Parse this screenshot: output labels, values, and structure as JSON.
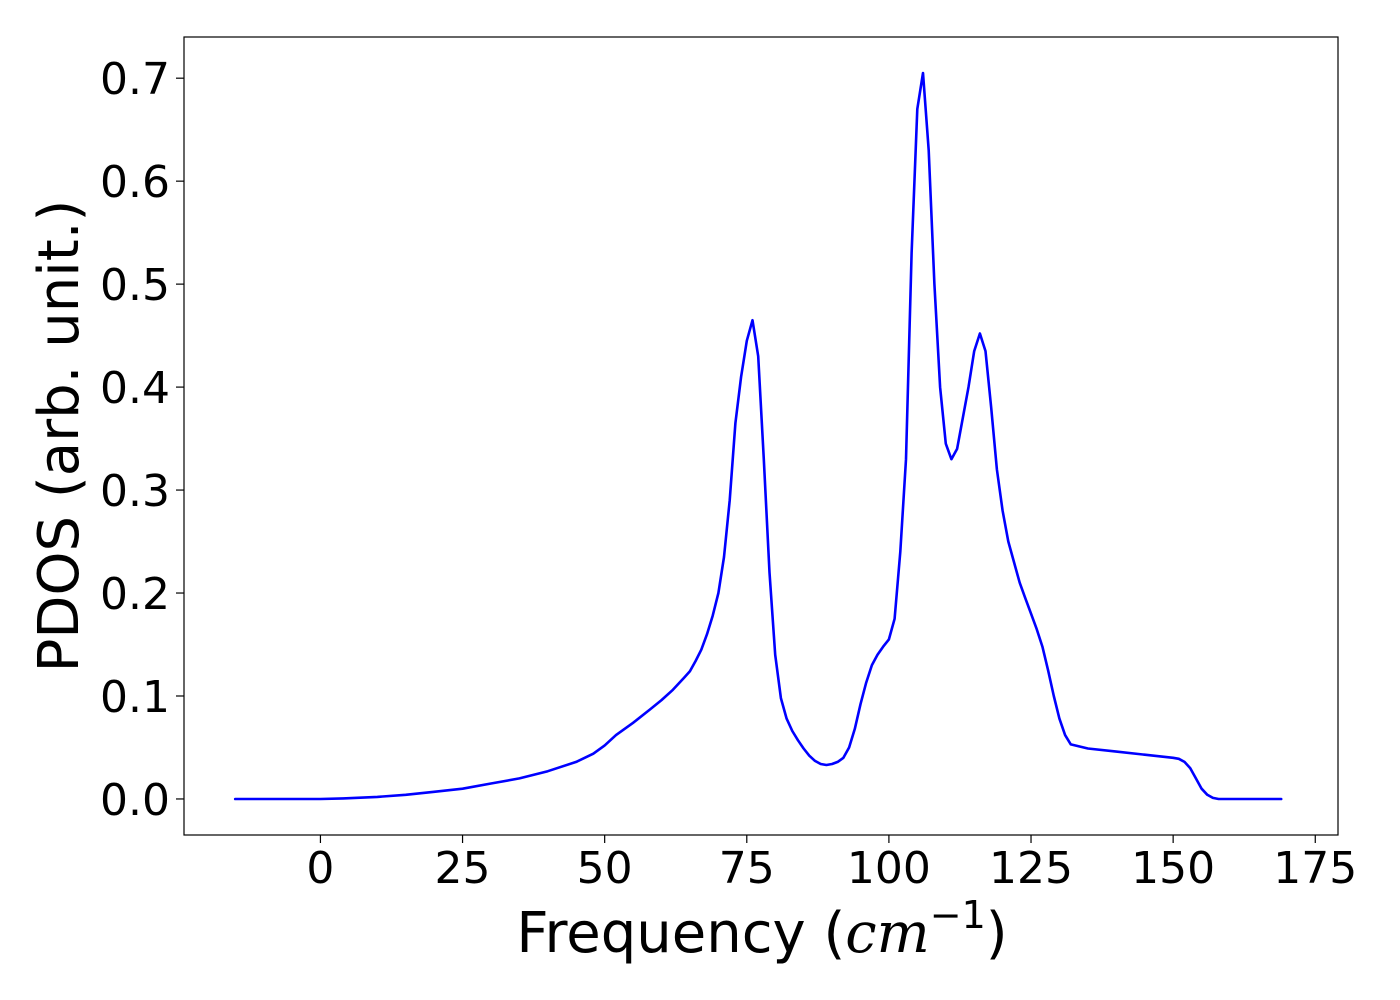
{
  "chart_data": {
    "type": "line",
    "title": "",
    "xlabel_text": "Frequency (",
    "xlabel_unit": "cm",
    "xlabel_exponent": "−1",
    "xlabel_close": ")",
    "ylabel": "PDOS (arb. unit.)",
    "xlim": [
      -24,
      179
    ],
    "ylim": [
      -0.035,
      0.74
    ],
    "xticks": [
      0,
      25,
      50,
      75,
      100,
      125,
      150,
      175
    ],
    "xtick_labels": [
      "0",
      "25",
      "50",
      "75",
      "100",
      "125",
      "150",
      "175"
    ],
    "yticks": [
      0.0,
      0.1,
      0.2,
      0.3,
      0.4,
      0.5,
      0.6,
      0.7
    ],
    "ytick_labels": [
      "0.0",
      "0.1",
      "0.2",
      "0.3",
      "0.4",
      "0.5",
      "0.6",
      "0.7"
    ],
    "grid": false,
    "series": [
      {
        "color": "#0000ff",
        "x": [
          -15,
          0,
          4,
          10,
          15,
          20,
          25,
          30,
          35,
          40,
          45,
          48,
          50,
          52,
          55,
          58,
          60,
          62,
          64,
          65,
          66,
          67,
          68,
          69,
          70,
          71,
          72,
          73,
          74,
          75,
          76,
          77,
          78,
          79,
          80,
          81,
          82,
          83,
          84,
          85,
          86,
          87,
          88,
          89,
          90,
          91,
          92,
          93,
          94,
          95,
          96,
          97,
          98,
          99,
          100,
          101,
          102,
          103,
          104,
          105,
          106,
          107,
          108,
          109,
          110,
          111,
          112,
          113,
          114,
          115,
          116,
          117,
          118,
          119,
          120,
          121,
          122,
          123,
          124,
          125,
          126,
          127,
          128,
          129,
          130,
          131,
          132,
          135,
          140,
          145,
          150,
          151,
          152,
          153,
          154,
          155,
          156,
          157,
          158,
          160,
          165,
          169
        ],
        "y": [
          0.0,
          0.0,
          0.0005,
          0.002,
          0.004,
          0.007,
          0.01,
          0.015,
          0.02,
          0.027,
          0.036,
          0.044,
          0.052,
          0.062,
          0.074,
          0.087,
          0.096,
          0.106,
          0.118,
          0.124,
          0.134,
          0.145,
          0.16,
          0.178,
          0.2,
          0.235,
          0.29,
          0.365,
          0.41,
          0.445,
          0.465,
          0.43,
          0.33,
          0.22,
          0.14,
          0.098,
          0.078,
          0.066,
          0.057,
          0.049,
          0.042,
          0.037,
          0.034,
          0.033,
          0.034,
          0.036,
          0.04,
          0.05,
          0.068,
          0.092,
          0.113,
          0.13,
          0.14,
          0.148,
          0.155,
          0.175,
          0.24,
          0.33,
          0.53,
          0.67,
          0.705,
          0.63,
          0.5,
          0.4,
          0.345,
          0.33,
          0.34,
          0.37,
          0.4,
          0.435,
          0.452,
          0.435,
          0.38,
          0.32,
          0.28,
          0.25,
          0.23,
          0.21,
          0.195,
          0.18,
          0.165,
          0.148,
          0.125,
          0.1,
          0.078,
          0.062,
          0.053,
          0.049,
          0.046,
          0.043,
          0.04,
          0.039,
          0.036,
          0.03,
          0.02,
          0.01,
          0.004,
          0.001,
          0.0,
          0.0,
          0.0,
          0.0
        ]
      }
    ]
  }
}
